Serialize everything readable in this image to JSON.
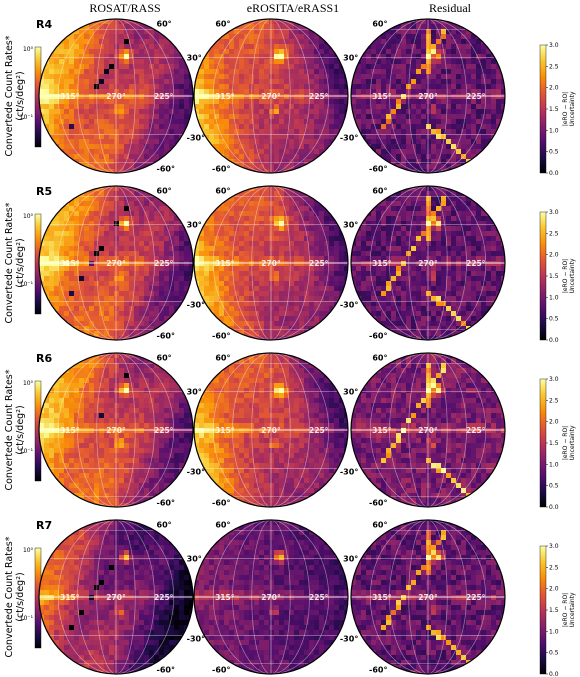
{
  "columns": [
    "ROSAT/RASS",
    "eROSITA/eRASS1",
    "Residual"
  ],
  "rows": [
    {
      "label": "R4",
      "variant": 0
    },
    {
      "label": "R5",
      "variant": 1
    },
    {
      "label": "R6",
      "variant": 2
    },
    {
      "label": "R7",
      "variant": 3
    }
  ],
  "left_axis": {
    "line1": "Convertede Count Rates*",
    "line2": "(ct/s/deg²)",
    "tick_top": "10⁰",
    "tick_bottom": "10⁻¹"
  },
  "latitude_labels": [
    "60°",
    "30°",
    "-30°",
    "-60°"
  ],
  "longitude_labels": [
    "315°",
    "270°",
    "225°"
  ],
  "residual_colorbar": {
    "ticks": [
      "0.0",
      "0.5",
      "1.0",
      "1.5",
      "2.0",
      "2.5",
      "3.0"
    ],
    "label_line1": "|eRO − RO|",
    "label_line2": "Uncertainty"
  },
  "colormap": [
    "#000004",
    "#1f0c48",
    "#550f6d",
    "#88226a",
    "#ba3655",
    "#e35933",
    "#f98e09",
    "#f8c932",
    "#fcffa4"
  ]
}
